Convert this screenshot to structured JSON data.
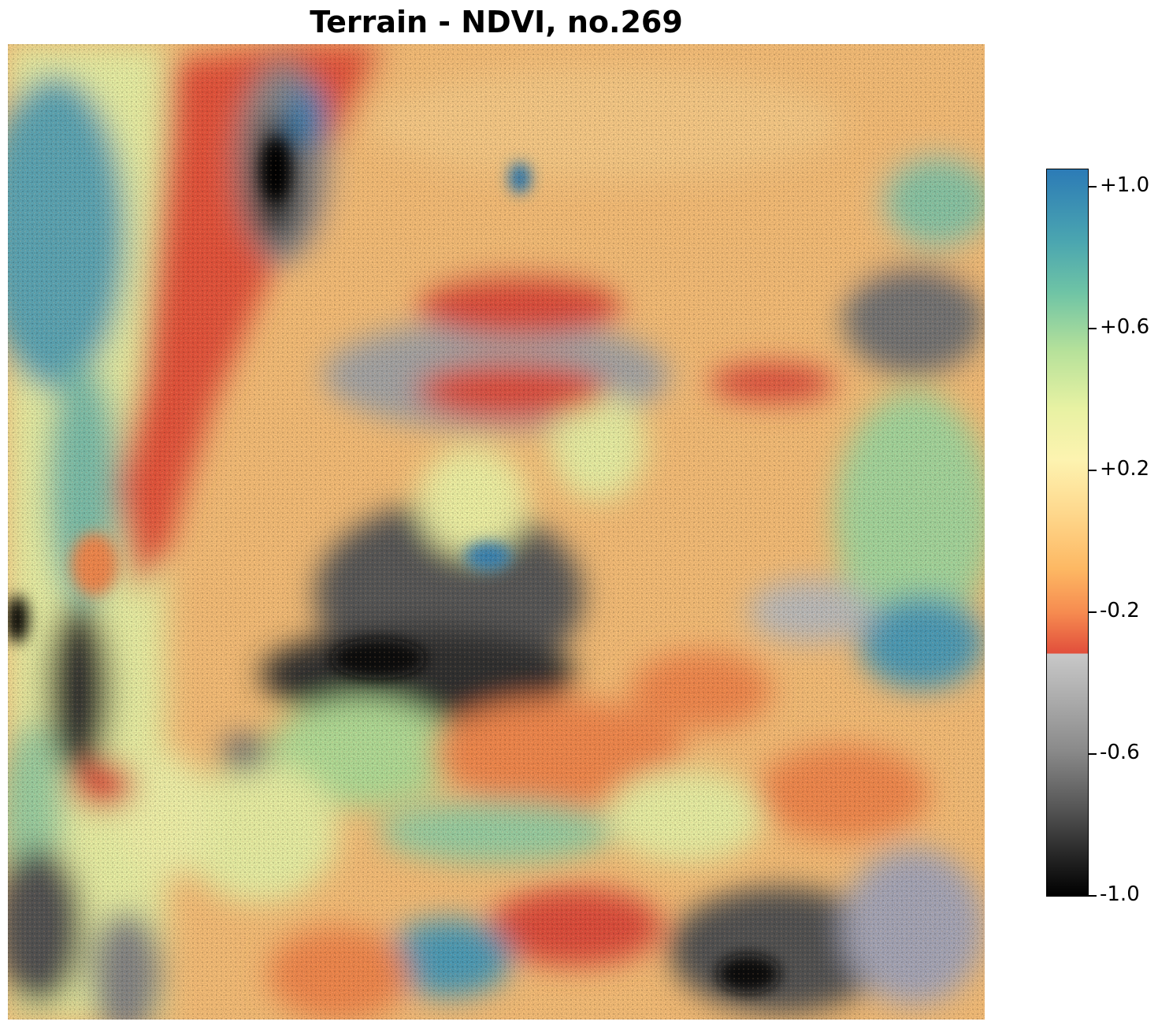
{
  "title": "Terrain - NDVI, no.269",
  "colorbar": {
    "colormap": "spectral-diverging with grey-black low end",
    "vmin": -1.0,
    "vmax": 1.0,
    "ticks": [
      {
        "value": 1.0,
        "label": "+1.0"
      },
      {
        "value": 0.6,
        "label": "+0.6"
      },
      {
        "value": 0.2,
        "label": "+0.2"
      },
      {
        "value": -0.2,
        "label": "-0.2"
      },
      {
        "value": -0.6,
        "label": "-0.6"
      },
      {
        "value": -1.0,
        "label": "-1.0"
      }
    ],
    "colors": {
      "high": "#2c7bb6",
      "mid_high": "#abdda4",
      "mid": "#fdf3b0",
      "mid_low": "#f68b50",
      "low_red": "#e2503c",
      "grey": "#c8c8c8",
      "black": "#000000"
    }
  }
}
